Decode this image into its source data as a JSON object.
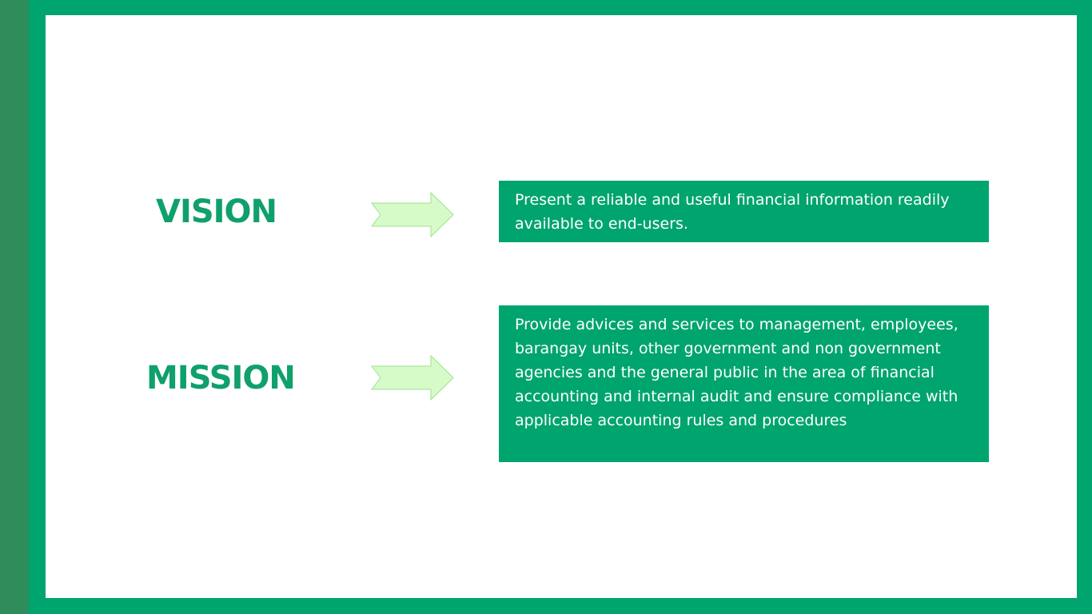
{
  "vision": {
    "label": "VISION",
    "statement": "Present a reliable and useful financial information readily available to end-users."
  },
  "mission": {
    "label": "MISSION",
    "statement": "Provide advices and services to management, employees, barangay units,  other government and non government agencies and the general public in the area of financial accounting and internal audit and ensure compliance with applicable accounting rules and procedures"
  },
  "colors": {
    "frame": "#00a46e",
    "left_stripe": "#2f8c5b",
    "heading": "#0fa06c",
    "arrow_fill": "#d6fbc9",
    "arrow_stroke": "#9fe08f",
    "box_text": "#ffffff"
  },
  "icons": {
    "vision_arrow": "right-arrow-icon",
    "mission_arrow": "right-arrow-icon"
  }
}
